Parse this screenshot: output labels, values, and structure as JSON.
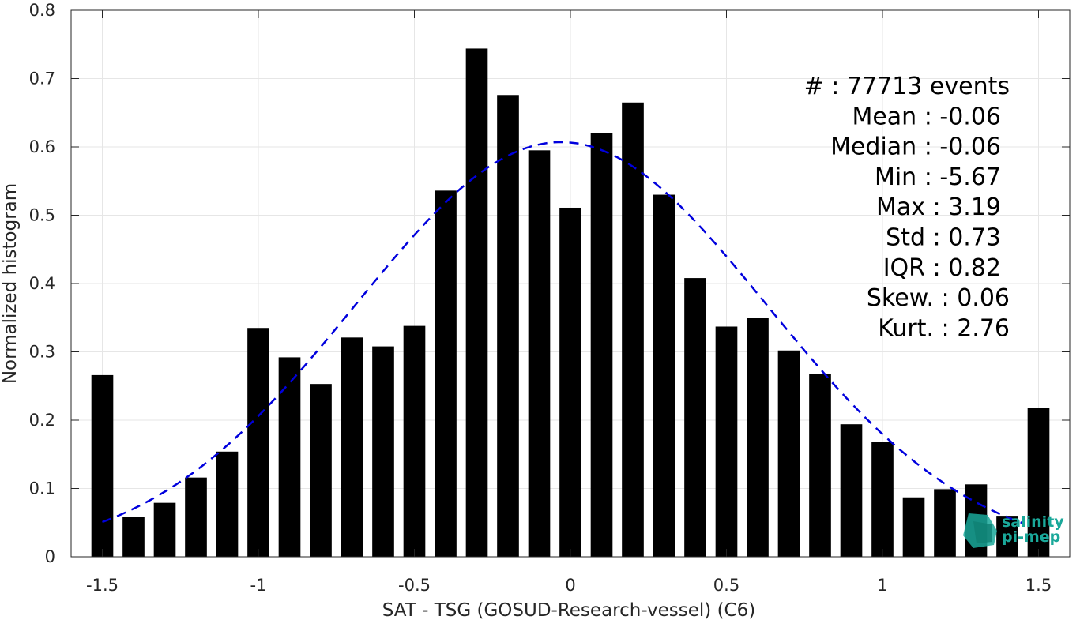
{
  "chart_data": {
    "type": "bar",
    "xlabel": "SAT - TSG (GOSUD-Research-vessel) (C6)",
    "ylabel": "Normalized histogram",
    "xlim": [
      -1.6,
      1.6
    ],
    "ylim": [
      0,
      0.8
    ],
    "x_ticks": [
      -1.5,
      -1,
      -0.5,
      0,
      0.5,
      1,
      1.5
    ],
    "x_tick_labels": [
      "-1.5",
      "-1",
      "-0.5",
      "0",
      "0.5",
      "1",
      "1.5"
    ],
    "y_ticks": [
      0,
      0.1,
      0.2,
      0.3,
      0.4,
      0.5,
      0.6,
      0.7,
      0.8
    ],
    "y_tick_labels": [
      "0",
      "0.1",
      "0.2",
      "0.3",
      "0.4",
      "0.5",
      "0.6",
      "0.7",
      "0.8"
    ],
    "grid": true,
    "bar_color": "#000000",
    "bin_width": 0.1,
    "bar_width_fraction": 0.7,
    "series": [
      {
        "x": [
          -1.5,
          -1.4,
          -1.3,
          -1.2,
          -1.1,
          -1.0,
          -0.9,
          -0.8,
          -0.7,
          -0.6,
          -0.5,
          -0.4,
          -0.3,
          -0.2,
          -0.1,
          0.0,
          0.1,
          0.2,
          0.3,
          0.4,
          0.5,
          0.6,
          0.7,
          0.8,
          0.9,
          1.0,
          1.1,
          1.2,
          1.3,
          1.4,
          1.5
        ],
        "values": [
          0.266,
          0.058,
          0.079,
          0.116,
          0.154,
          0.335,
          0.292,
          0.253,
          0.321,
          0.308,
          0.338,
          0.536,
          0.744,
          0.676,
          0.595,
          0.511,
          0.62,
          0.665,
          0.53,
          0.408,
          0.337,
          0.35,
          0.302,
          0.268,
          0.194,
          0.168,
          0.087,
          0.099,
          0.106,
          0.06,
          0.218
        ]
      }
    ],
    "fit_curve": {
      "style": "dashed",
      "color": "#0000dd",
      "mean": -0.03,
      "std": 0.66,
      "peak": 0.607,
      "x_range": [
        -1.5,
        1.45
      ]
    },
    "stats": [
      {
        "label": "#  : 77713 events"
      },
      {
        "label": "Mean : -0.06"
      },
      {
        "label": "Median : -0.06"
      },
      {
        "label": "Min : -5.67"
      },
      {
        "label": "Max : 3.19"
      },
      {
        "label": "Std : 0.73"
      },
      {
        "label": "IQR : 0.82"
      },
      {
        "label": "Skew. : 0.06"
      },
      {
        "label": "Kurt. : 2.76"
      }
    ]
  },
  "logo": {
    "line1": "salinity",
    "line2": "pi-mep",
    "color": "#1aa89a"
  }
}
